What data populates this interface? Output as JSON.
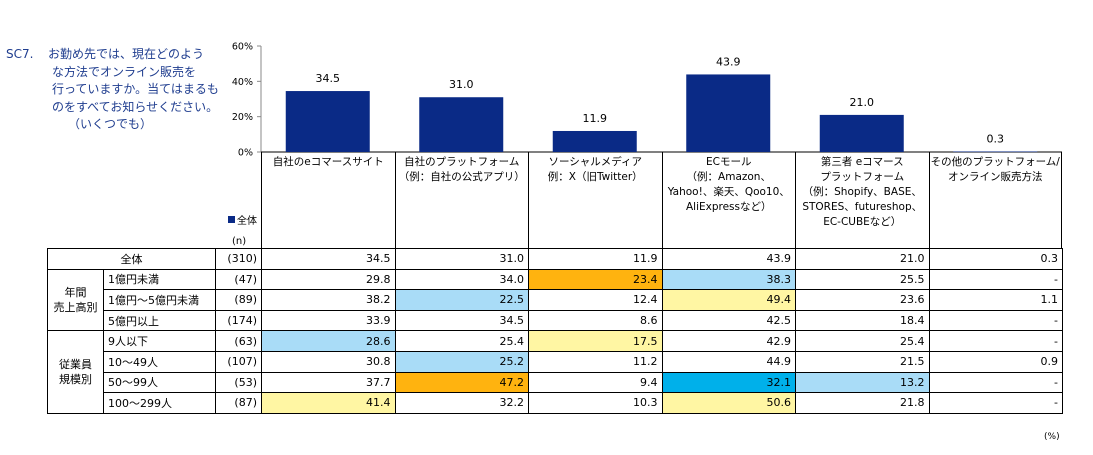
{
  "question": {
    "code": "SC7.",
    "lines": [
      "お勤め先では、現在どのよう",
      "な方法でオンライン販売を",
      "行っていますか。当てはまるも",
      "のをすべてお知らせください。",
      "（いくつでも）"
    ]
  },
  "legend_label": "全体",
  "n_label": "(n)",
  "unit_label": "(%)",
  "colors": {
    "bar": "#0a2a86",
    "light_blue": "#a9dcf7",
    "yellow": "#fff6a3",
    "orange": "#ffb30f",
    "cyan": "#00b0ea"
  },
  "chart_data": {
    "type": "bar",
    "categories": [
      "自社のeコマースサイト",
      "自社のプラットフォーム\n（例：自社の公式アプリ）",
      "ソーシャルメディア\n例：X（旧Twitter）",
      "ECモール\n（例：Amazon、\nYahoo!、楽天、Qoo10、\nAliExpressなど）",
      "第三者 eコマース\nプラットフォーム\n（例：Shopify、BASE、\nSTORES、futureshop、\nEC-CUBEなど）",
      "その他のプラットフォーム/\nオンライン販売方法"
    ],
    "series": [
      {
        "name": "全体",
        "values": [
          34.5,
          31.0,
          11.9,
          43.9,
          21.0,
          0.3
        ]
      }
    ],
    "value_labels": [
      "34.5",
      "31.0",
      "11.9",
      "43.9",
      "21.0",
      "0.3"
    ],
    "yticks": [
      "60%",
      "40%",
      "20%",
      "0%"
    ],
    "ylim": [
      0,
      60
    ],
    "legend": "left"
  },
  "table": {
    "rows": [
      {
        "group": "",
        "label": "全体",
        "n": "(310)",
        "values": [
          "34.5",
          "31.0",
          "11.9",
          "43.9",
          "21.0",
          "0.3"
        ],
        "hl": [
          "",
          "",
          "",
          "",
          "",
          ""
        ]
      },
      {
        "group": "年間\n売上高別",
        "label": "1億円未満",
        "n": "(47)",
        "values": [
          "29.8",
          "34.0",
          "23.4",
          "38.3",
          "25.5",
          "-"
        ],
        "hl": [
          "",
          "",
          "orange",
          "light_blue",
          "",
          ""
        ]
      },
      {
        "group": "",
        "label": "1億円～5億円未満",
        "n": "(89)",
        "values": [
          "38.2",
          "22.5",
          "12.4",
          "49.4",
          "23.6",
          "1.1"
        ],
        "hl": [
          "",
          "light_blue",
          "",
          "yellow",
          "",
          ""
        ]
      },
      {
        "group": "",
        "label": "5億円以上",
        "n": "(174)",
        "values": [
          "33.9",
          "34.5",
          "8.6",
          "42.5",
          "18.4",
          "-"
        ],
        "hl": [
          "",
          "",
          "",
          "",
          "",
          ""
        ]
      },
      {
        "group": "従業員\n規模別",
        "label": "9人以下",
        "n": "(63)",
        "values": [
          "28.6",
          "25.4",
          "17.5",
          "42.9",
          "25.4",
          "-"
        ],
        "hl": [
          "light_blue",
          "",
          "yellow",
          "",
          "",
          ""
        ]
      },
      {
        "group": "",
        "label": "10～49人",
        "n": "(107)",
        "values": [
          "30.8",
          "25.2",
          "11.2",
          "44.9",
          "21.5",
          "0.9"
        ],
        "hl": [
          "",
          "light_blue",
          "",
          "",
          "",
          ""
        ]
      },
      {
        "group": "",
        "label": "50～99人",
        "n": "(53)",
        "values": [
          "37.7",
          "47.2",
          "9.4",
          "32.1",
          "13.2",
          "-"
        ],
        "hl": [
          "",
          "orange",
          "",
          "cyan",
          "light_blue",
          ""
        ]
      },
      {
        "group": "",
        "label": "100～299人",
        "n": "(87)",
        "values": [
          "41.4",
          "32.2",
          "10.3",
          "50.6",
          "21.8",
          "-"
        ],
        "hl": [
          "yellow",
          "",
          "",
          "yellow",
          "",
          ""
        ]
      }
    ]
  }
}
